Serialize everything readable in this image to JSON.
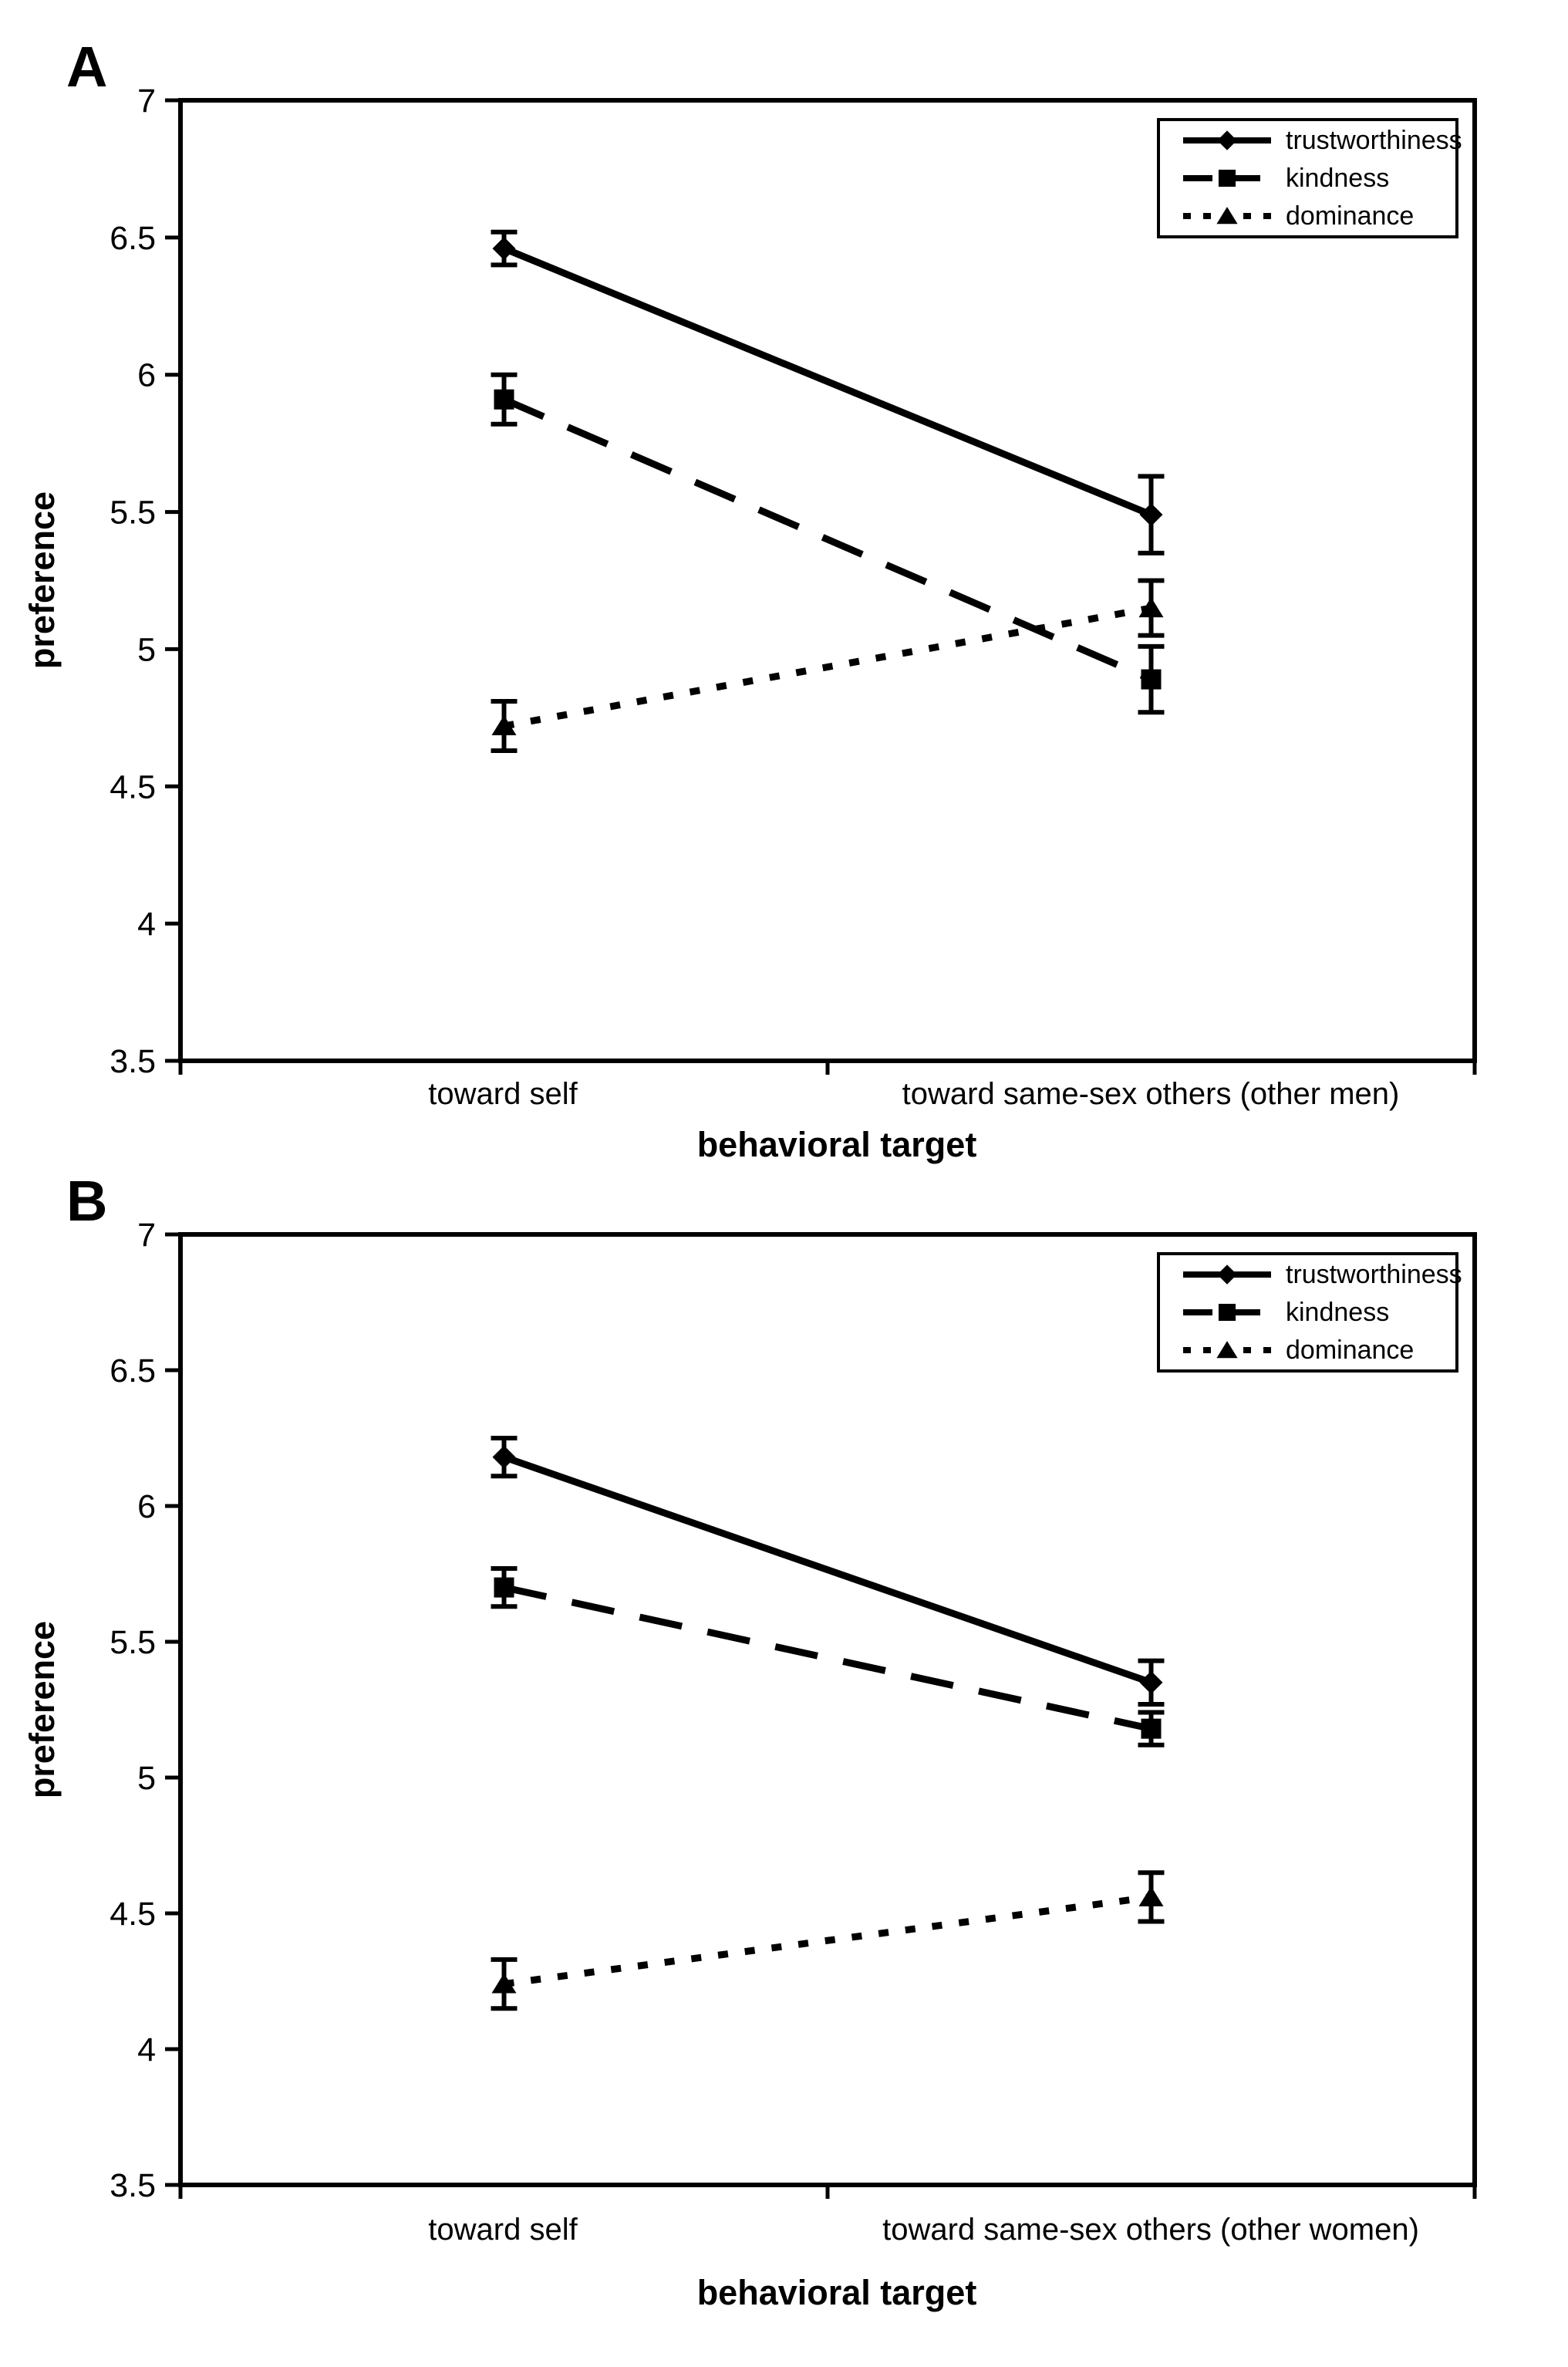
{
  "figure": {
    "background": "#ffffff",
    "ink_color": "#000000"
  },
  "chart_data": [
    {
      "type": "line",
      "panel_label": "A",
      "title": "",
      "xlabel": "behavioral target",
      "ylabel": "preference",
      "categories": [
        "toward self",
        "toward same-sex others (other men)"
      ],
      "ylim": [
        3.5,
        7
      ],
      "ytick_step": 0.5,
      "yticks": [
        7,
        6.5,
        6,
        5.5,
        5,
        4.5,
        4,
        3.5
      ],
      "grid": false,
      "legend_position": "top-right",
      "error_bars": true,
      "series": [
        {
          "name": "trustworthiness",
          "marker": "diamond",
          "line": "solid",
          "values": [
            6.46,
            5.49
          ],
          "errors": [
            0.06,
            0.14
          ]
        },
        {
          "name": "kindness",
          "marker": "square",
          "line": "dashed",
          "values": [
            5.91,
            4.89
          ],
          "errors": [
            0.09,
            0.12
          ]
        },
        {
          "name": "dominance",
          "marker": "triangle",
          "line": "dotted",
          "values": [
            4.72,
            5.15
          ],
          "errors": [
            0.09,
            0.1
          ]
        }
      ]
    },
    {
      "type": "line",
      "panel_label": "B",
      "title": "",
      "xlabel": "behavioral target",
      "ylabel": "preference",
      "categories": [
        "toward self",
        "toward same-sex others (other women)"
      ],
      "ylim": [
        3.5,
        7
      ],
      "ytick_step": 0.5,
      "yticks": [
        7,
        6.5,
        6,
        5.5,
        5,
        4.5,
        4,
        3.5
      ],
      "grid": false,
      "legend_position": "top-right",
      "error_bars": true,
      "series": [
        {
          "name": "trustworthiness",
          "marker": "diamond",
          "line": "solid",
          "values": [
            6.18,
            5.35
          ],
          "errors": [
            0.07,
            0.08
          ]
        },
        {
          "name": "kindness",
          "marker": "square",
          "line": "dashed",
          "values": [
            5.7,
            5.18
          ],
          "errors": [
            0.07,
            0.06
          ]
        },
        {
          "name": "dominance",
          "marker": "triangle",
          "line": "dotted",
          "values": [
            4.24,
            4.56
          ],
          "errors": [
            0.09,
            0.09
          ]
        }
      ]
    }
  ]
}
